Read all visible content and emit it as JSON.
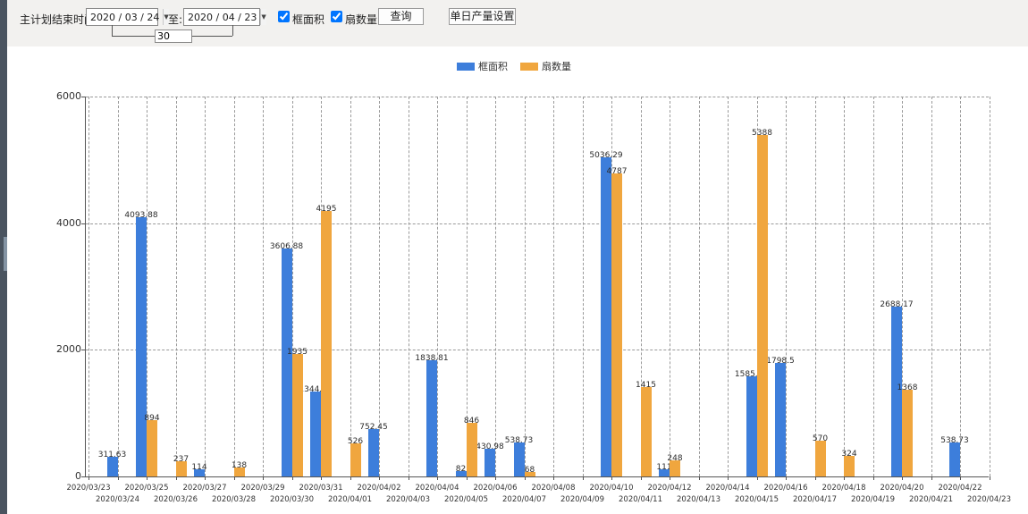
{
  "toolbar": {
    "plan_end_label": "主计划结束时间:",
    "start_date": "2020 / 03 / 24",
    "to_label": "至:",
    "end_date": "2020 / 04 / 23",
    "days_value": "30",
    "checkbox_frame_label": "框面积",
    "checkbox_fan_label": "扇数量",
    "query_button": "查询",
    "daily_output_button": "单日产量设置"
  },
  "chart_data": {
    "type": "bar",
    "title": "",
    "xlabel": "",
    "ylabel": "",
    "ylim": [
      0,
      6000
    ],
    "yticks": [
      0,
      2000,
      4000,
      6000
    ],
    "grid": true,
    "legend_position": "top-center",
    "categories": [
      "2020/03/23",
      "2020/03/24",
      "2020/03/25",
      "2020/03/26",
      "2020/03/27",
      "2020/03/28",
      "2020/03/29",
      "2020/03/30",
      "2020/03/31",
      "2020/04/01",
      "2020/04/02",
      "2020/04/03",
      "2020/04/04",
      "2020/04/05",
      "2020/04/06",
      "2020/04/07",
      "2020/04/08",
      "2020/04/09",
      "2020/04/10",
      "2020/04/11",
      "2020/04/12",
      "2020/04/13",
      "2020/04/14",
      "2020/04/15",
      "2020/04/16",
      "2020/04/17",
      "2020/04/18",
      "2020/04/19",
      "2020/04/20",
      "2020/04/21",
      "2020/04/22",
      "2020/04/23"
    ],
    "series": [
      {
        "name": "框面积",
        "color": "#3d7edb",
        "values": [
          null,
          311.63,
          4093.88,
          null,
          114,
          null,
          null,
          3606.88,
          1344.95,
          null,
          752.45,
          null,
          1838.81,
          82,
          430.98,
          538.73,
          null,
          null,
          5036.29,
          null,
          111,
          null,
          null,
          1585.96,
          1798.5,
          null,
          null,
          null,
          2688.17,
          null,
          538.73,
          null
        ]
      },
      {
        "name": "扇数量",
        "color": "#f0a63e",
        "values": [
          null,
          null,
          894,
          237,
          null,
          138,
          null,
          1935,
          4195,
          526,
          null,
          null,
          null,
          846,
          null,
          68,
          null,
          null,
          4787,
          1415,
          248,
          null,
          null,
          5388,
          null,
          570,
          324,
          null,
          1368,
          null,
          null,
          null
        ]
      }
    ]
  }
}
